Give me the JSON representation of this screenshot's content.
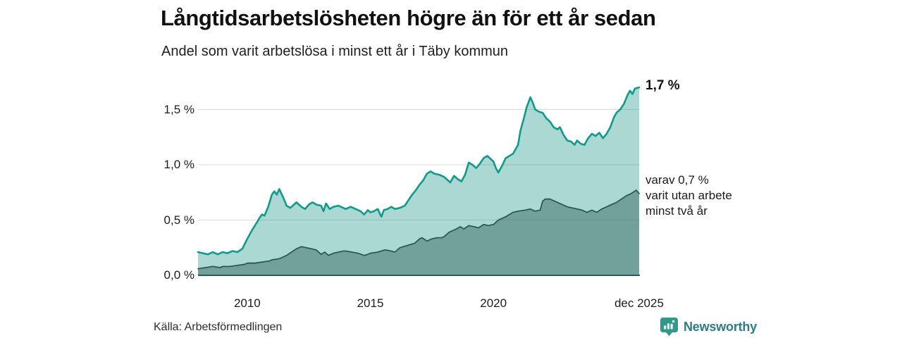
{
  "header": {
    "title": "Långtidsarbetslösheten högre än för ett år sedan",
    "subtitle": "Andel som varit arbetslösa i minst ett år i Täby kommun"
  },
  "chart_data": {
    "type": "area",
    "title": "Långtidsarbetslösheten högre än för ett år sedan",
    "subtitle": "Andel som varit arbetslösa i minst ett år i Täby kommun",
    "unit": "%",
    "x_domain": [
      2008.0,
      2025.95
    ],
    "ylim": [
      0,
      1.76
    ],
    "grid": "horizontal",
    "yticks": [
      {
        "value": 0.0,
        "label": "0,0 %"
      },
      {
        "value": 0.5,
        "label": "0,5 %"
      },
      {
        "value": 1.0,
        "label": "1,0 %"
      },
      {
        "value": 1.5,
        "label": "1,5 %"
      }
    ],
    "xticks": [
      {
        "value": 2010,
        "label": "2010"
      },
      {
        "value": 2015,
        "label": "2015"
      },
      {
        "value": 2020,
        "label": "2020"
      },
      {
        "value": 2025.92,
        "label": "dec 2025"
      }
    ],
    "series": [
      {
        "name": "Andel som varit arbetslösa i minst ett år",
        "line_color": "#0f9b8b",
        "fill_color": "#abd8d2",
        "latest_value": 1.7,
        "points": [
          [
            2008.0,
            0.21
          ],
          [
            2008.2,
            0.2
          ],
          [
            2008.4,
            0.19
          ],
          [
            2008.6,
            0.21
          ],
          [
            2008.8,
            0.19
          ],
          [
            2009.0,
            0.21
          ],
          [
            2009.2,
            0.2
          ],
          [
            2009.4,
            0.22
          ],
          [
            2009.6,
            0.21
          ],
          [
            2009.8,
            0.24
          ],
          [
            2010.0,
            0.33
          ],
          [
            2010.2,
            0.41
          ],
          [
            2010.4,
            0.48
          ],
          [
            2010.5,
            0.52
          ],
          [
            2010.6,
            0.55
          ],
          [
            2010.7,
            0.54
          ],
          [
            2010.85,
            0.62
          ],
          [
            2011.0,
            0.73
          ],
          [
            2011.1,
            0.76
          ],
          [
            2011.2,
            0.73
          ],
          [
            2011.3,
            0.78
          ],
          [
            2011.45,
            0.71
          ],
          [
            2011.6,
            0.63
          ],
          [
            2011.75,
            0.61
          ],
          [
            2011.9,
            0.64
          ],
          [
            2012.0,
            0.66
          ],
          [
            2012.2,
            0.62
          ],
          [
            2012.35,
            0.6
          ],
          [
            2012.5,
            0.64
          ],
          [
            2012.65,
            0.66
          ],
          [
            2012.8,
            0.64
          ],
          [
            2013.0,
            0.63
          ],
          [
            2013.1,
            0.58
          ],
          [
            2013.2,
            0.65
          ],
          [
            2013.35,
            0.6
          ],
          [
            2013.5,
            0.62
          ],
          [
            2013.7,
            0.63
          ],
          [
            2013.9,
            0.61
          ],
          [
            2014.0,
            0.6
          ],
          [
            2014.2,
            0.62
          ],
          [
            2014.4,
            0.6
          ],
          [
            2014.6,
            0.58
          ],
          [
            2014.75,
            0.55
          ],
          [
            2014.9,
            0.59
          ],
          [
            2015.0,
            0.57
          ],
          [
            2015.15,
            0.58
          ],
          [
            2015.3,
            0.6
          ],
          [
            2015.45,
            0.53
          ],
          [
            2015.55,
            0.59
          ],
          [
            2015.7,
            0.6
          ],
          [
            2015.85,
            0.62
          ],
          [
            2016.0,
            0.6
          ],
          [
            2016.2,
            0.61
          ],
          [
            2016.4,
            0.63
          ],
          [
            2016.55,
            0.68
          ],
          [
            2016.7,
            0.73
          ],
          [
            2016.85,
            0.77
          ],
          [
            2017.0,
            0.82
          ],
          [
            2017.15,
            0.86
          ],
          [
            2017.3,
            0.92
          ],
          [
            2017.45,
            0.94
          ],
          [
            2017.6,
            0.92
          ],
          [
            2017.8,
            0.91
          ],
          [
            2018.0,
            0.89
          ],
          [
            2018.15,
            0.86
          ],
          [
            2018.25,
            0.84
          ],
          [
            2018.4,
            0.9
          ],
          [
            2018.55,
            0.87
          ],
          [
            2018.7,
            0.85
          ],
          [
            2018.85,
            0.91
          ],
          [
            2019.0,
            1.02
          ],
          [
            2019.15,
            1.0
          ],
          [
            2019.3,
            0.97
          ],
          [
            2019.45,
            1.01
          ],
          [
            2019.6,
            1.06
          ],
          [
            2019.75,
            1.08
          ],
          [
            2019.9,
            1.05
          ],
          [
            2020.0,
            1.03
          ],
          [
            2020.1,
            0.97
          ],
          [
            2020.2,
            0.93
          ],
          [
            2020.35,
            0.99
          ],
          [
            2020.5,
            1.06
          ],
          [
            2020.65,
            1.08
          ],
          [
            2020.8,
            1.1
          ],
          [
            2021.0,
            1.18
          ],
          [
            2021.1,
            1.31
          ],
          [
            2021.25,
            1.43
          ],
          [
            2021.35,
            1.52
          ],
          [
            2021.5,
            1.61
          ],
          [
            2021.6,
            1.56
          ],
          [
            2021.7,
            1.5
          ],
          [
            2021.85,
            1.48
          ],
          [
            2022.0,
            1.47
          ],
          [
            2022.15,
            1.42
          ],
          [
            2022.3,
            1.39
          ],
          [
            2022.45,
            1.34
          ],
          [
            2022.6,
            1.32
          ],
          [
            2022.7,
            1.34
          ],
          [
            2022.85,
            1.27
          ],
          [
            2023.0,
            1.22
          ],
          [
            2023.15,
            1.21
          ],
          [
            2023.3,
            1.18
          ],
          [
            2023.4,
            1.22
          ],
          [
            2023.55,
            1.19
          ],
          [
            2023.7,
            1.18
          ],
          [
            2023.85,
            1.24
          ],
          [
            2024.0,
            1.28
          ],
          [
            2024.15,
            1.26
          ],
          [
            2024.3,
            1.29
          ],
          [
            2024.45,
            1.24
          ],
          [
            2024.6,
            1.28
          ],
          [
            2024.75,
            1.34
          ],
          [
            2024.9,
            1.43
          ],
          [
            2025.0,
            1.47
          ],
          [
            2025.15,
            1.5
          ],
          [
            2025.3,
            1.55
          ],
          [
            2025.45,
            1.63
          ],
          [
            2025.55,
            1.67
          ],
          [
            2025.65,
            1.64
          ],
          [
            2025.75,
            1.69
          ],
          [
            2025.92,
            1.7
          ]
        ]
      },
      {
        "name": "varav utan arbete minst två år",
        "line_color": "#2b5a54",
        "fill_color": "#72a19c",
        "latest_value": 0.7,
        "points": [
          [
            2008.0,
            0.06
          ],
          [
            2008.3,
            0.07
          ],
          [
            2008.6,
            0.08
          ],
          [
            2008.9,
            0.07
          ],
          [
            2009.0,
            0.08
          ],
          [
            2009.3,
            0.08
          ],
          [
            2009.6,
            0.09
          ],
          [
            2009.9,
            0.1
          ],
          [
            2010.0,
            0.11
          ],
          [
            2010.3,
            0.11
          ],
          [
            2010.6,
            0.12
          ],
          [
            2010.9,
            0.13
          ],
          [
            2011.0,
            0.14
          ],
          [
            2011.3,
            0.15
          ],
          [
            2011.6,
            0.18
          ],
          [
            2011.8,
            0.21
          ],
          [
            2012.0,
            0.24
          ],
          [
            2012.2,
            0.26
          ],
          [
            2012.4,
            0.25
          ],
          [
            2012.6,
            0.24
          ],
          [
            2012.8,
            0.23
          ],
          [
            2013.0,
            0.19
          ],
          [
            2013.15,
            0.21
          ],
          [
            2013.3,
            0.18
          ],
          [
            2013.5,
            0.2
          ],
          [
            2013.7,
            0.21
          ],
          [
            2013.9,
            0.22
          ],
          [
            2014.0,
            0.22
          ],
          [
            2014.25,
            0.21
          ],
          [
            2014.5,
            0.2
          ],
          [
            2014.75,
            0.18
          ],
          [
            2014.9,
            0.19
          ],
          [
            2015.0,
            0.2
          ],
          [
            2015.3,
            0.21
          ],
          [
            2015.6,
            0.23
          ],
          [
            2015.85,
            0.22
          ],
          [
            2016.0,
            0.21
          ],
          [
            2016.2,
            0.25
          ],
          [
            2016.5,
            0.27
          ],
          [
            2016.8,
            0.29
          ],
          [
            2017.0,
            0.33
          ],
          [
            2017.1,
            0.34
          ],
          [
            2017.3,
            0.31
          ],
          [
            2017.5,
            0.33
          ],
          [
            2017.7,
            0.34
          ],
          [
            2017.9,
            0.34
          ],
          [
            2018.0,
            0.35
          ],
          [
            2018.2,
            0.39
          ],
          [
            2018.5,
            0.42
          ],
          [
            2018.65,
            0.44
          ],
          [
            2018.8,
            0.42
          ],
          [
            2019.0,
            0.45
          ],
          [
            2019.2,
            0.44
          ],
          [
            2019.4,
            0.43
          ],
          [
            2019.6,
            0.46
          ],
          [
            2019.8,
            0.45
          ],
          [
            2020.0,
            0.46
          ],
          [
            2020.2,
            0.5
          ],
          [
            2020.5,
            0.53
          ],
          [
            2020.8,
            0.57
          ],
          [
            2021.0,
            0.58
          ],
          [
            2021.3,
            0.59
          ],
          [
            2021.5,
            0.6
          ],
          [
            2021.7,
            0.58
          ],
          [
            2021.9,
            0.59
          ],
          [
            2022.0,
            0.67
          ],
          [
            2022.1,
            0.69
          ],
          [
            2022.3,
            0.69
          ],
          [
            2022.5,
            0.67
          ],
          [
            2022.7,
            0.65
          ],
          [
            2022.9,
            0.63
          ],
          [
            2023.0,
            0.62
          ],
          [
            2023.2,
            0.61
          ],
          [
            2023.4,
            0.6
          ],
          [
            2023.6,
            0.59
          ],
          [
            2023.8,
            0.57
          ],
          [
            2024.0,
            0.59
          ],
          [
            2024.2,
            0.57
          ],
          [
            2024.4,
            0.6
          ],
          [
            2024.6,
            0.62
          ],
          [
            2024.8,
            0.64
          ],
          [
            2025.0,
            0.66
          ],
          [
            2025.2,
            0.69
          ],
          [
            2025.4,
            0.72
          ],
          [
            2025.6,
            0.74
          ],
          [
            2025.8,
            0.77
          ],
          [
            2025.92,
            0.74
          ]
        ]
      }
    ],
    "annotations": {
      "latest_total": "1,7 %",
      "latest_two_years": "varav 0,7 %\nvarit utan arbete\nminst två år"
    },
    "colors": {
      "gridline": "#d6d6d6",
      "baseline": "#2b5a54",
      "text": "#1a1a1a"
    }
  },
  "footer": {
    "source": "Källa: Arbetsförmedlingen",
    "brand": "Newsworthy",
    "brand_color": "#2e7b86",
    "brand_mark_color": "#2f998c"
  }
}
